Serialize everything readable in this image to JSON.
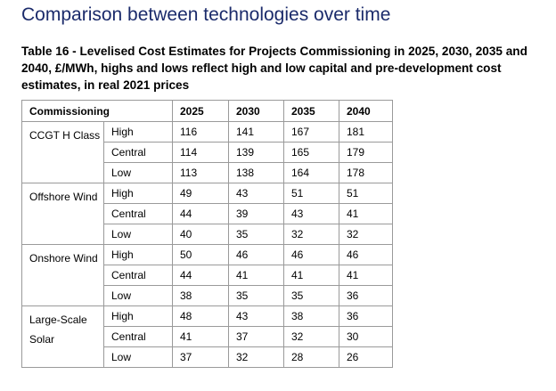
{
  "heading": "Comparison between technologies over time",
  "caption": "Table 16 - Levelised Cost Estimates for Projects Commissioning in 2025, 2030, 2035 and 2040, £/MWh, highs and lows reflect high and low capital and pre-development cost estimates, in real 2021 prices",
  "table": {
    "header": {
      "commissioning": "Commissioning",
      "years": [
        "2025",
        "2030",
        "2035",
        "2040"
      ]
    },
    "groups": [
      {
        "technology": "CCGT H Class",
        "rows": [
          {
            "level": "High",
            "values": [
              "116",
              "141",
              "167",
              "181"
            ]
          },
          {
            "level": "Central",
            "values": [
              "114",
              "139",
              "165",
              "179"
            ]
          },
          {
            "level": "Low",
            "values": [
              "113",
              "138",
              "164",
              "178"
            ]
          }
        ]
      },
      {
        "technology": "Offshore Wind",
        "rows": [
          {
            "level": "High",
            "values": [
              "49",
              "43",
              "51",
              "51"
            ]
          },
          {
            "level": "Central",
            "values": [
              "44",
              "39",
              "43",
              "41"
            ]
          },
          {
            "level": "Low",
            "values": [
              "40",
              "35",
              "32",
              "32"
            ]
          }
        ]
      },
      {
        "technology": "Onshore Wind",
        "rows": [
          {
            "level": "High",
            "values": [
              "50",
              "46",
              "46",
              "46"
            ]
          },
          {
            "level": "Central",
            "values": [
              "44",
              "41",
              "41",
              "41"
            ]
          },
          {
            "level": "Low",
            "values": [
              "38",
              "35",
              "35",
              "36"
            ]
          }
        ]
      },
      {
        "technology": "Large-Scale Solar",
        "rows": [
          {
            "level": "High",
            "values": [
              "48",
              "43",
              "38",
              "36"
            ]
          },
          {
            "level": "Central",
            "values": [
              "41",
              "37",
              "32",
              "30"
            ]
          },
          {
            "level": "Low",
            "values": [
              "37",
              "32",
              "28",
              "26"
            ]
          }
        ]
      }
    ]
  }
}
